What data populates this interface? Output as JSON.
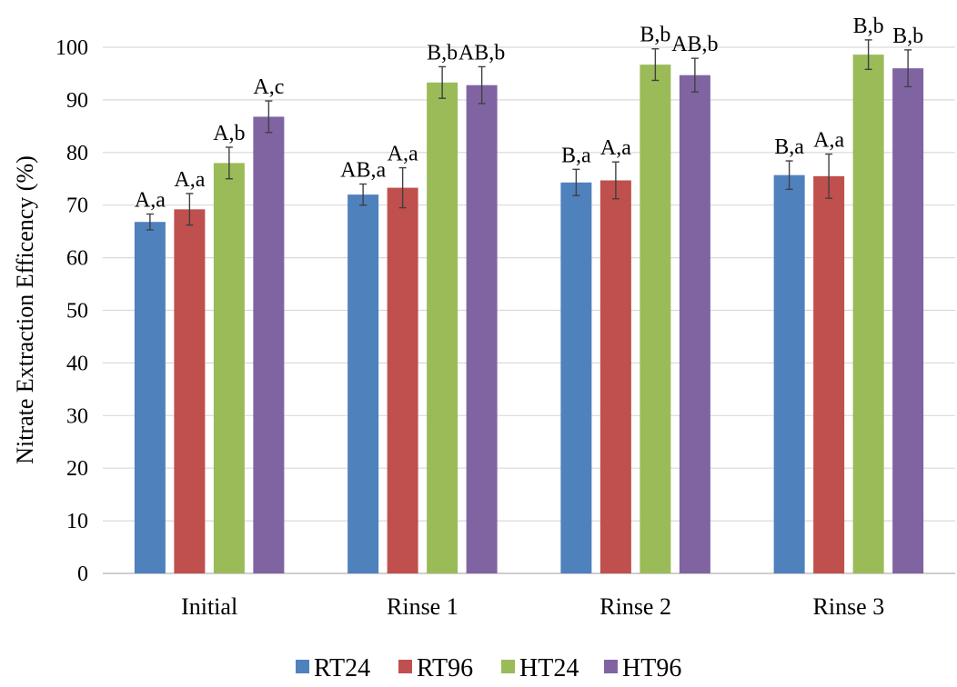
{
  "chart_data": {
    "type": "bar",
    "title": "",
    "xlabel": "",
    "ylabel": "Nitrate Extraction Efficency (%)",
    "ylim": [
      0,
      100
    ],
    "yticks": [
      0,
      10,
      20,
      30,
      40,
      50,
      60,
      70,
      80,
      90,
      100
    ],
    "grid": true,
    "legend_position": "bottom",
    "categories": [
      "Initial",
      "Rinse 1",
      "Rinse 2",
      "Rinse 3"
    ],
    "series": [
      {
        "name": "RT24",
        "color": "#4f81bd",
        "values": [
          66.8,
          72.0,
          74.3,
          75.7
        ],
        "errors": [
          1.5,
          2.0,
          2.5,
          2.7
        ],
        "labels": [
          "A,a",
          "AB,a",
          "B,a",
          "B,a"
        ]
      },
      {
        "name": "RT96",
        "color": "#c0504d",
        "values": [
          69.2,
          73.3,
          74.7,
          75.5
        ],
        "errors": [
          3.0,
          3.8,
          3.5,
          4.2
        ],
        "labels": [
          "A,a",
          "A,a",
          "A,a",
          "A,a"
        ]
      },
      {
        "name": "HT24",
        "color": "#9bbb59",
        "values": [
          78.0,
          93.3,
          96.7,
          98.6
        ],
        "errors": [
          3.0,
          3.0,
          3.0,
          2.8
        ],
        "labels": [
          "A,b",
          "B,b",
          "B,b",
          "B,b"
        ]
      },
      {
        "name": "HT96",
        "color": "#8064a2",
        "values": [
          86.8,
          92.8,
          94.7,
          96.0
        ],
        "errors": [
          3.0,
          3.5,
          3.2,
          3.5
        ],
        "labels": [
          "A,c",
          "AB,b",
          "AB,b",
          "B,b"
        ]
      }
    ]
  }
}
